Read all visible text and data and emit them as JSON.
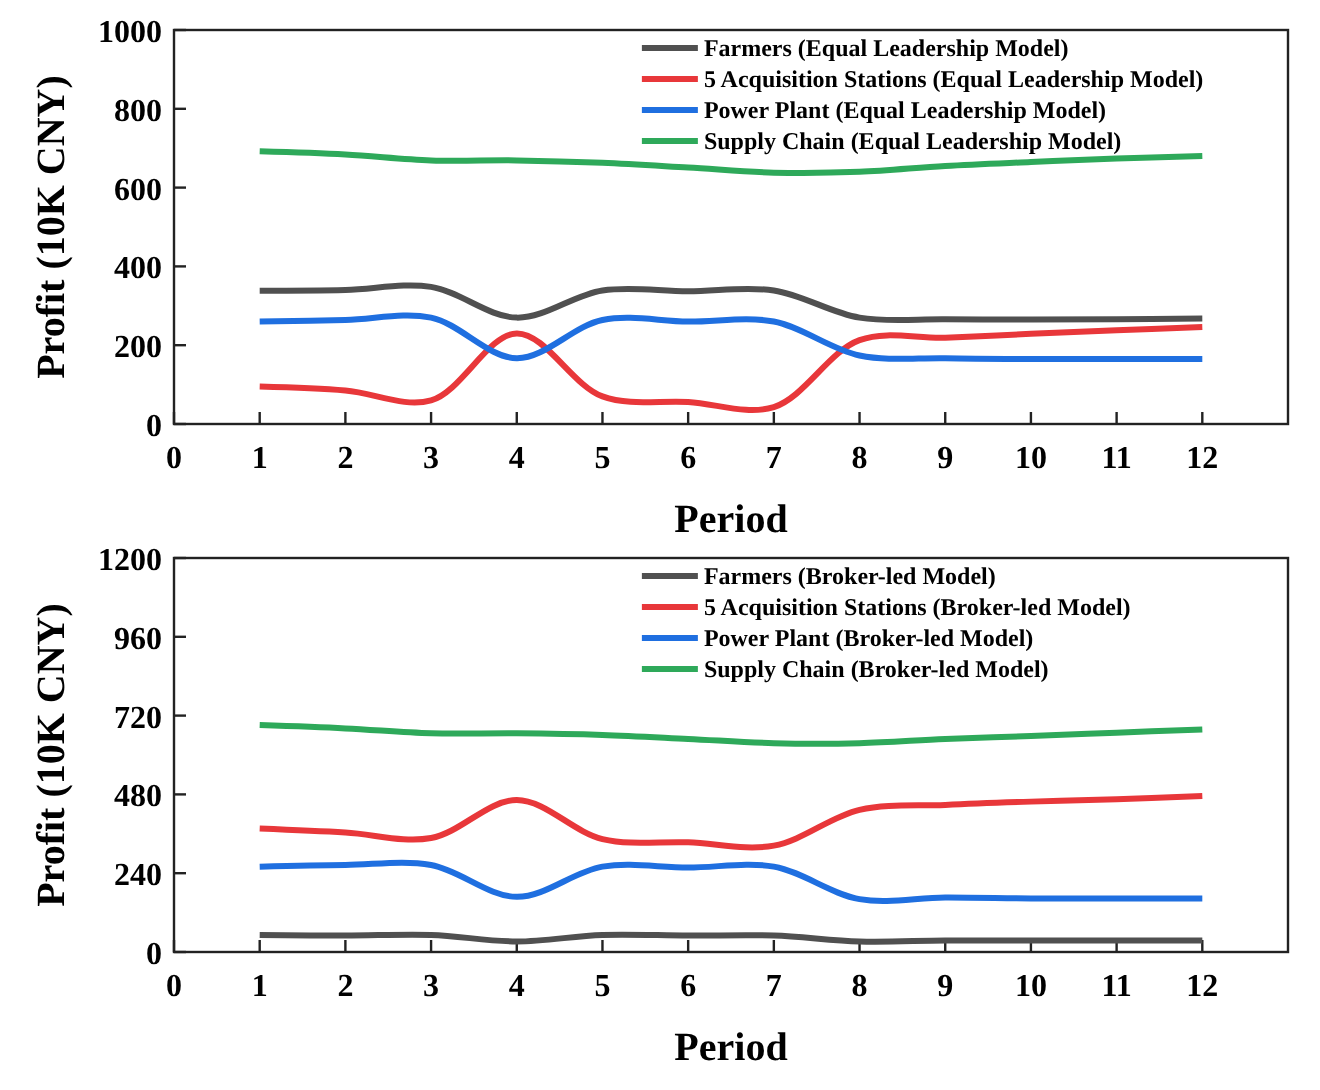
{
  "chart_data": [
    {
      "type": "line",
      "xlabel": "Period",
      "ylabel": "Profit (10K CNY)",
      "x": [
        1,
        2,
        3,
        4,
        5,
        6,
        7,
        8,
        9,
        10,
        11,
        12
      ],
      "xlim": [
        0,
        13
      ],
      "xticks": [
        0,
        1,
        2,
        3,
        4,
        5,
        6,
        7,
        8,
        9,
        10,
        11,
        12
      ],
      "ylim": [
        0,
        1000
      ],
      "yticks": [
        0,
        200,
        400,
        600,
        800,
        1000
      ],
      "legend": "top right",
      "series": [
        {
          "name": "Farmers (Equal Leadership Model)",
          "color": "#505050",
          "values": [
            338,
            340,
            348,
            270,
            339,
            337,
            339,
            270,
            266,
            265,
            266,
            268
          ]
        },
        {
          "name": "5 Acquisition Stations (Equal Leadership Model)",
          "color": "#e8373a",
          "values": [
            95,
            85,
            60,
            230,
            70,
            56,
            43,
            213,
            219,
            229,
            238,
            246
          ]
        },
        {
          "name": "Power Plant (Equal Leadership Model)",
          "color": "#1f6fe0",
          "values": [
            260,
            264,
            270,
            167,
            264,
            260,
            260,
            174,
            167,
            165,
            165,
            165
          ]
        },
        {
          "name": "Supply Chain (Equal Leadership Model)",
          "color": "#2ea95a",
          "values": [
            692,
            684,
            669,
            669,
            663,
            651,
            638,
            640,
            655,
            665,
            674,
            680
          ]
        }
      ]
    },
    {
      "type": "line",
      "xlabel": "Period",
      "ylabel": "Profit (10K CNY)",
      "x": [
        1,
        2,
        3,
        4,
        5,
        6,
        7,
        8,
        9,
        10,
        11,
        12
      ],
      "xlim": [
        0,
        13
      ],
      "xticks": [
        0,
        1,
        2,
        3,
        4,
        5,
        6,
        7,
        8,
        9,
        10,
        11,
        12
      ],
      "ylim": [
        0,
        1200
      ],
      "yticks": [
        0,
        240,
        480,
        720,
        960,
        1200
      ],
      "legend": "top right",
      "series": [
        {
          "name": "Farmers (Broker-led Model)",
          "color": "#505050",
          "values": [
            52,
            50,
            52,
            32,
            52,
            50,
            50,
            32,
            35,
            35,
            35,
            35
          ]
        },
        {
          "name": "5 Acquisition Stations (Broker-led Model)",
          "color": "#e8373a",
          "values": [
            376,
            364,
            347,
            463,
            344,
            334,
            324,
            433,
            448,
            458,
            465,
            475
          ]
        },
        {
          "name": "Power Plant (Broker-led Model)",
          "color": "#1f6fe0",
          "values": [
            260,
            265,
            265,
            168,
            260,
            257,
            260,
            161,
            166,
            163,
            163,
            163
          ]
        },
        {
          "name": "Supply Chain (Broker-led Model)",
          "color": "#2ea95a",
          "values": [
            691,
            681,
            666,
            666,
            661,
            649,
            636,
            636,
            649,
            658,
            668,
            678
          ]
        }
      ]
    }
  ]
}
